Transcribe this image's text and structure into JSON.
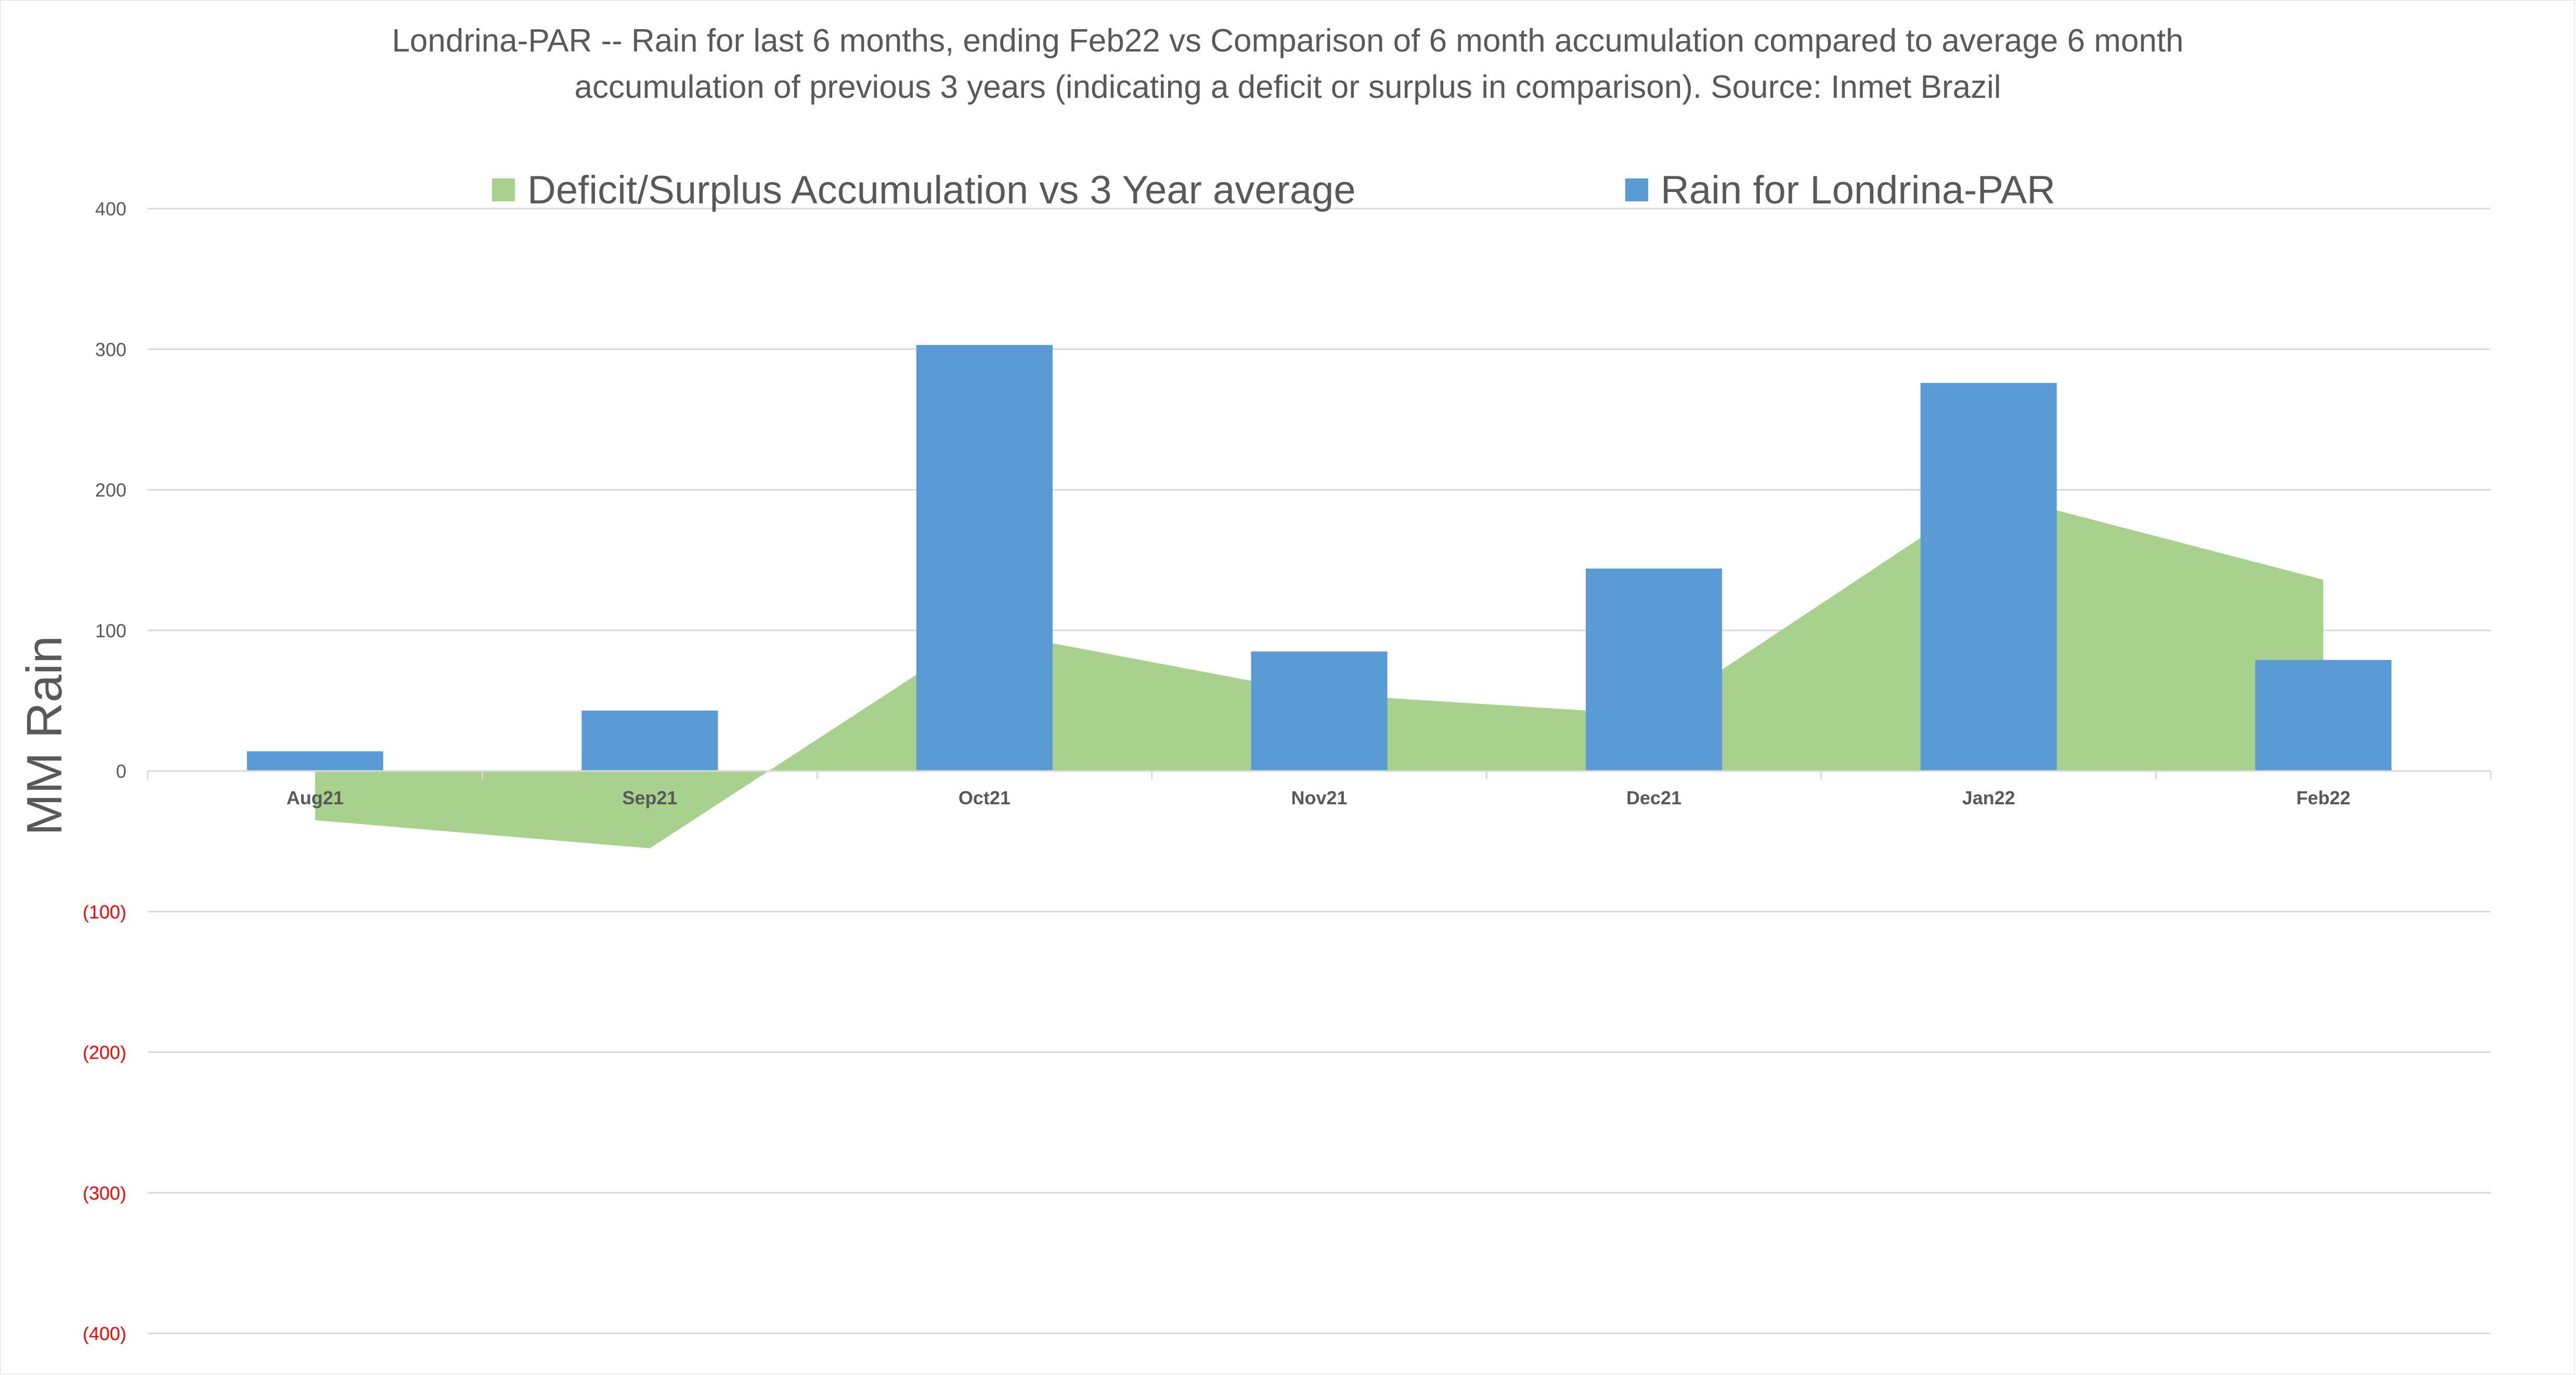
{
  "chart_data": {
    "type": "bar",
    "title_lines": [
      "Londrina-PAR -- Rain for last 6 months, ending Feb22  vs Comparison of 6 month accumulation compared to average 6 month",
      "accumulation of previous 3 years  (indicating a deficit or surplus in comparison). Source: Inmet Brazil"
    ],
    "xlabel": "",
    "ylabel": "MM Rain",
    "ylim": [
      -400,
      400
    ],
    "yticks": [
      400,
      300,
      200,
      100,
      0,
      -100,
      -200,
      -300,
      -400
    ],
    "ytick_labels": [
      "400",
      "300",
      "200",
      "100",
      "0",
      "(100)",
      "(200)",
      "(300)",
      "(400)"
    ],
    "grid": true,
    "legend_position": "top",
    "categories": [
      "Aug21",
      "Sep21",
      "Oct21",
      "Nov21",
      "Dec21",
      "Jan22",
      "Feb22"
    ],
    "series": [
      {
        "name": "Deficit/Surplus Accumulation vs 3 Year average",
        "type": "area",
        "color": "#a9d18e",
        "values": [
          -35,
          -55,
          100,
          55,
          40,
          198,
          136
        ]
      },
      {
        "name": "Rain for Londrina-PAR",
        "type": "bar",
        "color": "#5b9bd5",
        "values": [
          14,
          43,
          303,
          85,
          144,
          276,
          79
        ]
      }
    ],
    "negative_tick_color": "#ff0000"
  }
}
